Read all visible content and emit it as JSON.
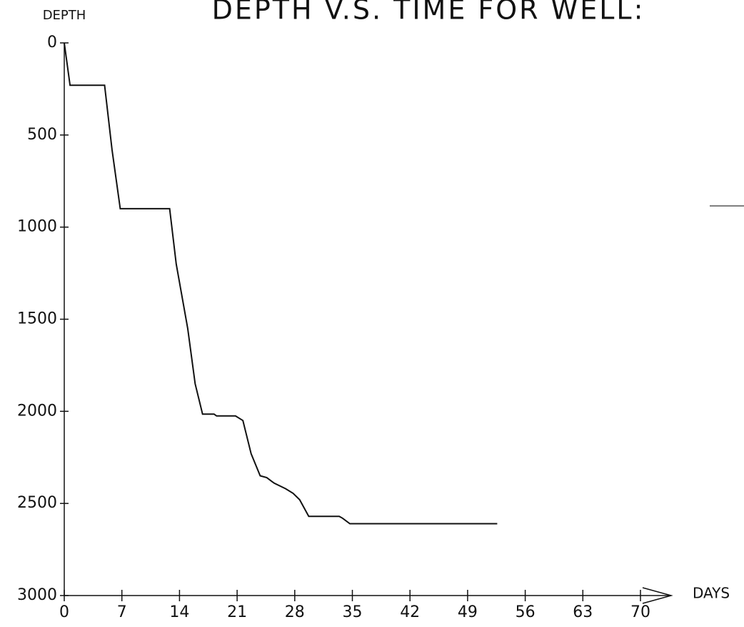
{
  "chart_data": {
    "type": "line",
    "title": "DEPTH V.S. TIME FOR WELL:",
    "ylabel": "DEPTH",
    "xlabel": "DAYS",
    "x": [
      0,
      0.7,
      4.9,
      5.8,
      6.8,
      12.8,
      13.6,
      15,
      15.9,
      16.8,
      18.2,
      18.5,
      20.8,
      21.7,
      22.7,
      23.8,
      24.6,
      25.5,
      26.9,
      27.8,
      28.6,
      29.7,
      33.4,
      33.8,
      34.7,
      52.6
    ],
    "values": [
      0,
      230,
      230,
      580,
      900,
      900,
      1200,
      1550,
      1850,
      2015,
      2015,
      2025,
      2025,
      2050,
      2230,
      2350,
      2360,
      2390,
      2420,
      2445,
      2480,
      2570,
      2570,
      2580,
      2610,
      2610
    ],
    "color": "#111111",
    "xlim": [
      0,
      70
    ],
    "xticks": [
      0,
      7,
      14,
      21,
      28,
      35,
      42,
      49,
      56,
      63,
      70
    ],
    "ylim": [
      0,
      3000
    ],
    "yticks": [
      0,
      500,
      1000,
      1500,
      2000,
      2500,
      3000
    ],
    "y_inverted": true
  }
}
